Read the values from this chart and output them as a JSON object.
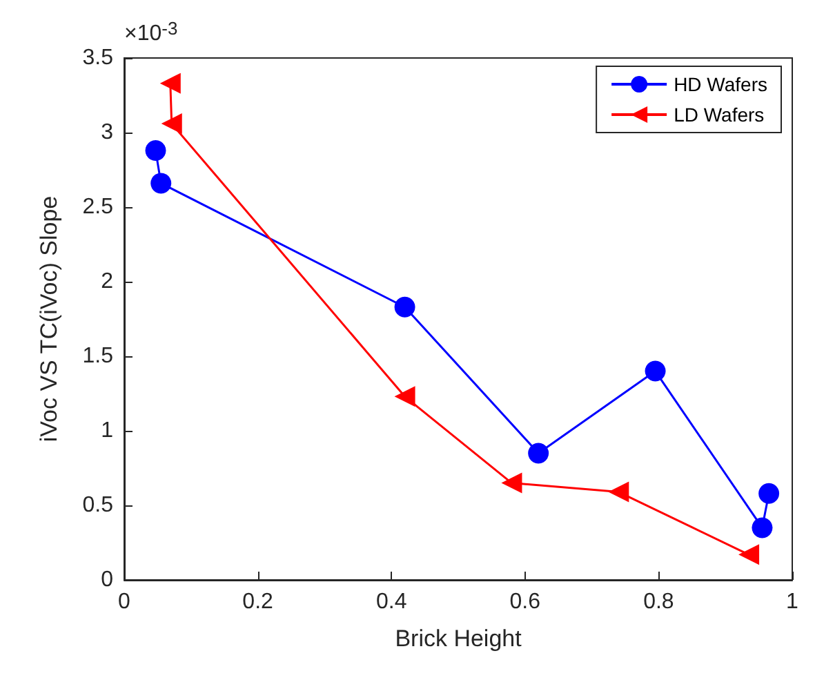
{
  "chart_data": {
    "type": "line",
    "xlabel": "Brick Height",
    "ylabel": "iVoc VS TC(iVoc) Slope",
    "annotations": [
      "×10$^{-3}$"
    ],
    "xlim": [
      0,
      1
    ],
    "xticks": [
      0,
      0.2,
      0.4,
      0.6,
      0.8,
      1
    ],
    "ylim": [
      0,
      3.5
    ],
    "yticks": [
      0,
      0.5,
      1,
      1.5,
      2,
      2.5,
      3,
      3.5
    ],
    "grid": false,
    "legend": "top right",
    "series": [
      {
        "name": "HD Wafers",
        "color": "#0000ff",
        "marker": "circle",
        "x": [
          0.047,
          0.055,
          0.42,
          0.62,
          0.795,
          0.955,
          0.965
        ],
        "values": [
          2.88,
          2.66,
          1.83,
          0.85,
          1.4,
          0.35,
          0.58
        ]
      },
      {
        "name": "LD Wafers",
        "color": "#ff0000",
        "marker": "triangle",
        "x": [
          0.069,
          0.071,
          0.42,
          0.58,
          0.74,
          0.935
        ],
        "values": [
          3.33,
          3.06,
          1.23,
          0.65,
          0.59,
          0.17
        ]
      }
    ]
  }
}
